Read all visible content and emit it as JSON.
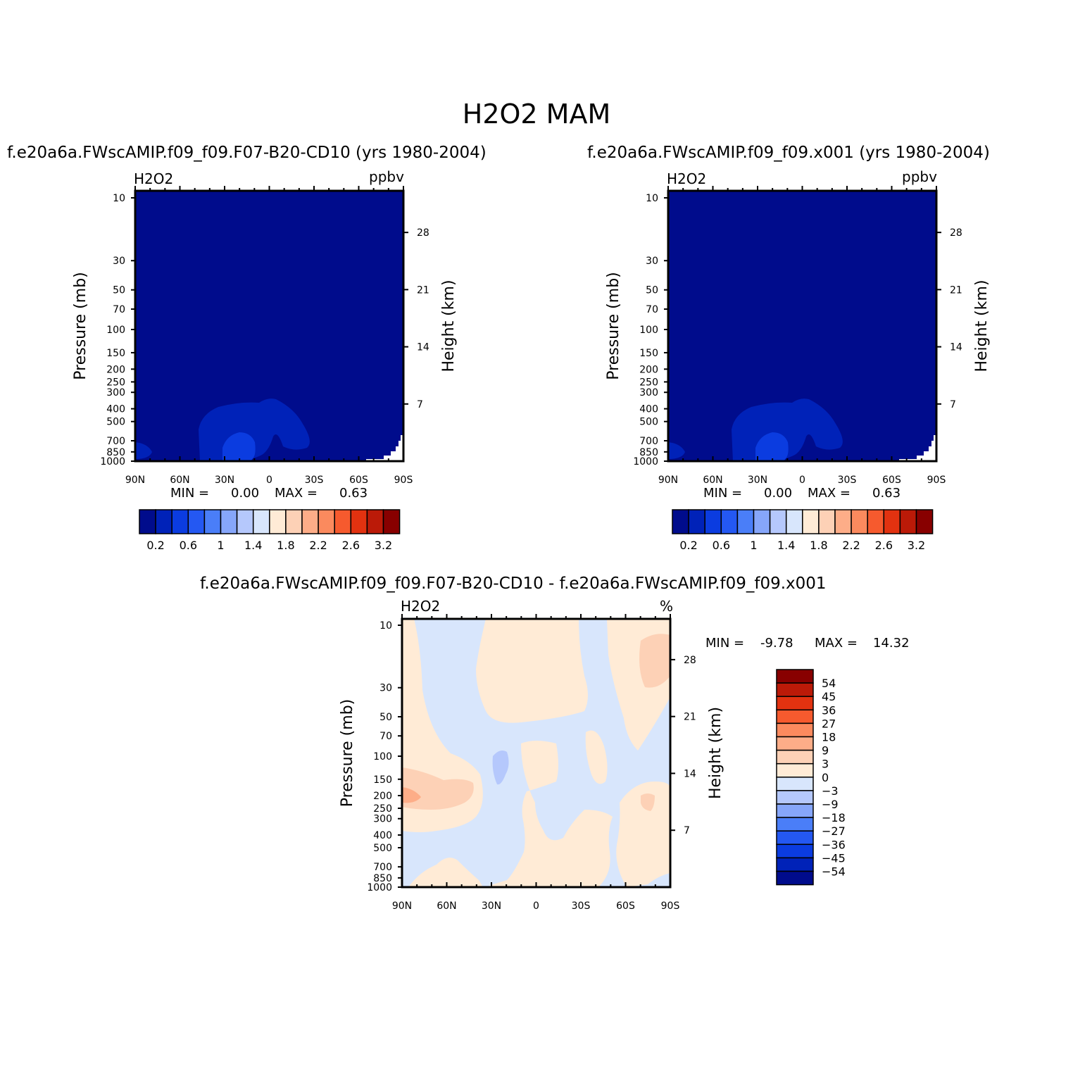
{
  "figure": {
    "title": "H2O2 MAM"
  },
  "chart_data": [
    {
      "type": "heatmap",
      "title": "f.e20a6a.FWscAMIP.f09_f09.F07-B20-CD10 (yrs 1980-2004)",
      "variable": "H2O2",
      "units": "ppbv",
      "xlabel": "",
      "ylabel": "Pressure (mb)",
      "ylabel_right": "Height (km)",
      "x_ticks": [
        "90N",
        "60N",
        "30N",
        "0",
        "30S",
        "60S",
        "90S"
      ],
      "y_ticks": [
        "10",
        "30",
        "50",
        "70",
        "100",
        "150",
        "200",
        "250",
        "300",
        "400",
        "500",
        "700",
        "850",
        "1000"
      ],
      "y_ticks_right": [
        "28",
        "21",
        "14",
        "7"
      ],
      "y_range_mb": [
        1000,
        10
      ],
      "log_scale_y": true,
      "min_label": "MIN =",
      "min_value": "0.00",
      "max_label": "MAX =",
      "max_value": "0.63",
      "colorbar": {
        "orientation": "horizontal",
        "labels": [
          "0.2",
          "0.6",
          "1",
          "1.4",
          "1.8",
          "2.2",
          "2.6",
          "3.2"
        ],
        "colors": [
          "#000c8c",
          "#0022b8",
          "#0b3ce0",
          "#2458f2",
          "#4a7ef8",
          "#86a6fa",
          "#b5c8fc",
          "#d8e6fc",
          "#ffebd6",
          "#fdd1b6",
          "#fdad88",
          "#fb8a5e",
          "#f65a2e",
          "#e23210",
          "#bb1a08",
          "#880000"
        ]
      },
      "background_color": "#000c8c"
    },
    {
      "type": "heatmap",
      "title": "f.e20a6a.FWscAMIP.f09_f09.x001 (yrs 1980-2004)",
      "variable": "H2O2",
      "units": "ppbv",
      "xlabel": "",
      "ylabel": "Pressure (mb)",
      "ylabel_right": "Height (km)",
      "x_ticks": [
        "90N",
        "60N",
        "30N",
        "0",
        "30S",
        "60S",
        "90S"
      ],
      "y_ticks": [
        "10",
        "30",
        "50",
        "70",
        "100",
        "150",
        "200",
        "250",
        "300",
        "400",
        "500",
        "700",
        "850",
        "1000"
      ],
      "y_ticks_right": [
        "28",
        "21",
        "14",
        "7"
      ],
      "y_range_mb": [
        1000,
        10
      ],
      "log_scale_y": true,
      "min_label": "MIN =",
      "min_value": "0.00",
      "max_label": "MAX =",
      "max_value": "0.63",
      "colorbar": {
        "orientation": "horizontal",
        "labels": [
          "0.2",
          "0.6",
          "1",
          "1.4",
          "1.8",
          "2.2",
          "2.6",
          "3.2"
        ],
        "colors": [
          "#000c8c",
          "#0022b8",
          "#0b3ce0",
          "#2458f2",
          "#4a7ef8",
          "#86a6fa",
          "#b5c8fc",
          "#d8e6fc",
          "#ffebd6",
          "#fdd1b6",
          "#fdad88",
          "#fb8a5e",
          "#f65a2e",
          "#e23210",
          "#bb1a08",
          "#880000"
        ]
      },
      "background_color": "#000c8c"
    },
    {
      "type": "heatmap",
      "title": "f.e20a6a.FWscAMIP.f09_f09.F07-B20-CD10 - f.e20a6a.FWscAMIP.f09_f09.x001",
      "variable": "H2O2",
      "units": "%",
      "xlabel": "",
      "ylabel": "Pressure (mb)",
      "ylabel_right": "Height (km)",
      "x_ticks": [
        "90N",
        "60N",
        "30N",
        "0",
        "30S",
        "60S",
        "90S"
      ],
      "y_ticks": [
        "10",
        "30",
        "50",
        "70",
        "100",
        "150",
        "200",
        "250",
        "300",
        "400",
        "500",
        "700",
        "850",
        "1000"
      ],
      "y_ticks_right": [
        "28",
        "21",
        "14",
        "7"
      ],
      "y_range_mb": [
        1000,
        10
      ],
      "log_scale_y": true,
      "min_label": "MIN =",
      "min_value": "-9.78",
      "max_label": "MAX =",
      "max_value": "14.32",
      "colorbar": {
        "orientation": "vertical",
        "labels": [
          "54",
          "45",
          "36",
          "27",
          "18",
          "9",
          "3",
          "0",
          "−3",
          "−9",
          "−18",
          "−27",
          "−36",
          "−45",
          "−54"
        ],
        "colors": [
          "#880000",
          "#bb1a08",
          "#e23210",
          "#f65a2e",
          "#fb8a5e",
          "#fdad88",
          "#fdd1b6",
          "#ffebd6",
          "#d8e6fc",
          "#b5c8fc",
          "#86a6fa",
          "#4a7ef8",
          "#2458f2",
          "#0b3ce0",
          "#0022b8",
          "#000c8c"
        ]
      },
      "background_color": "#d8e6fc"
    }
  ]
}
